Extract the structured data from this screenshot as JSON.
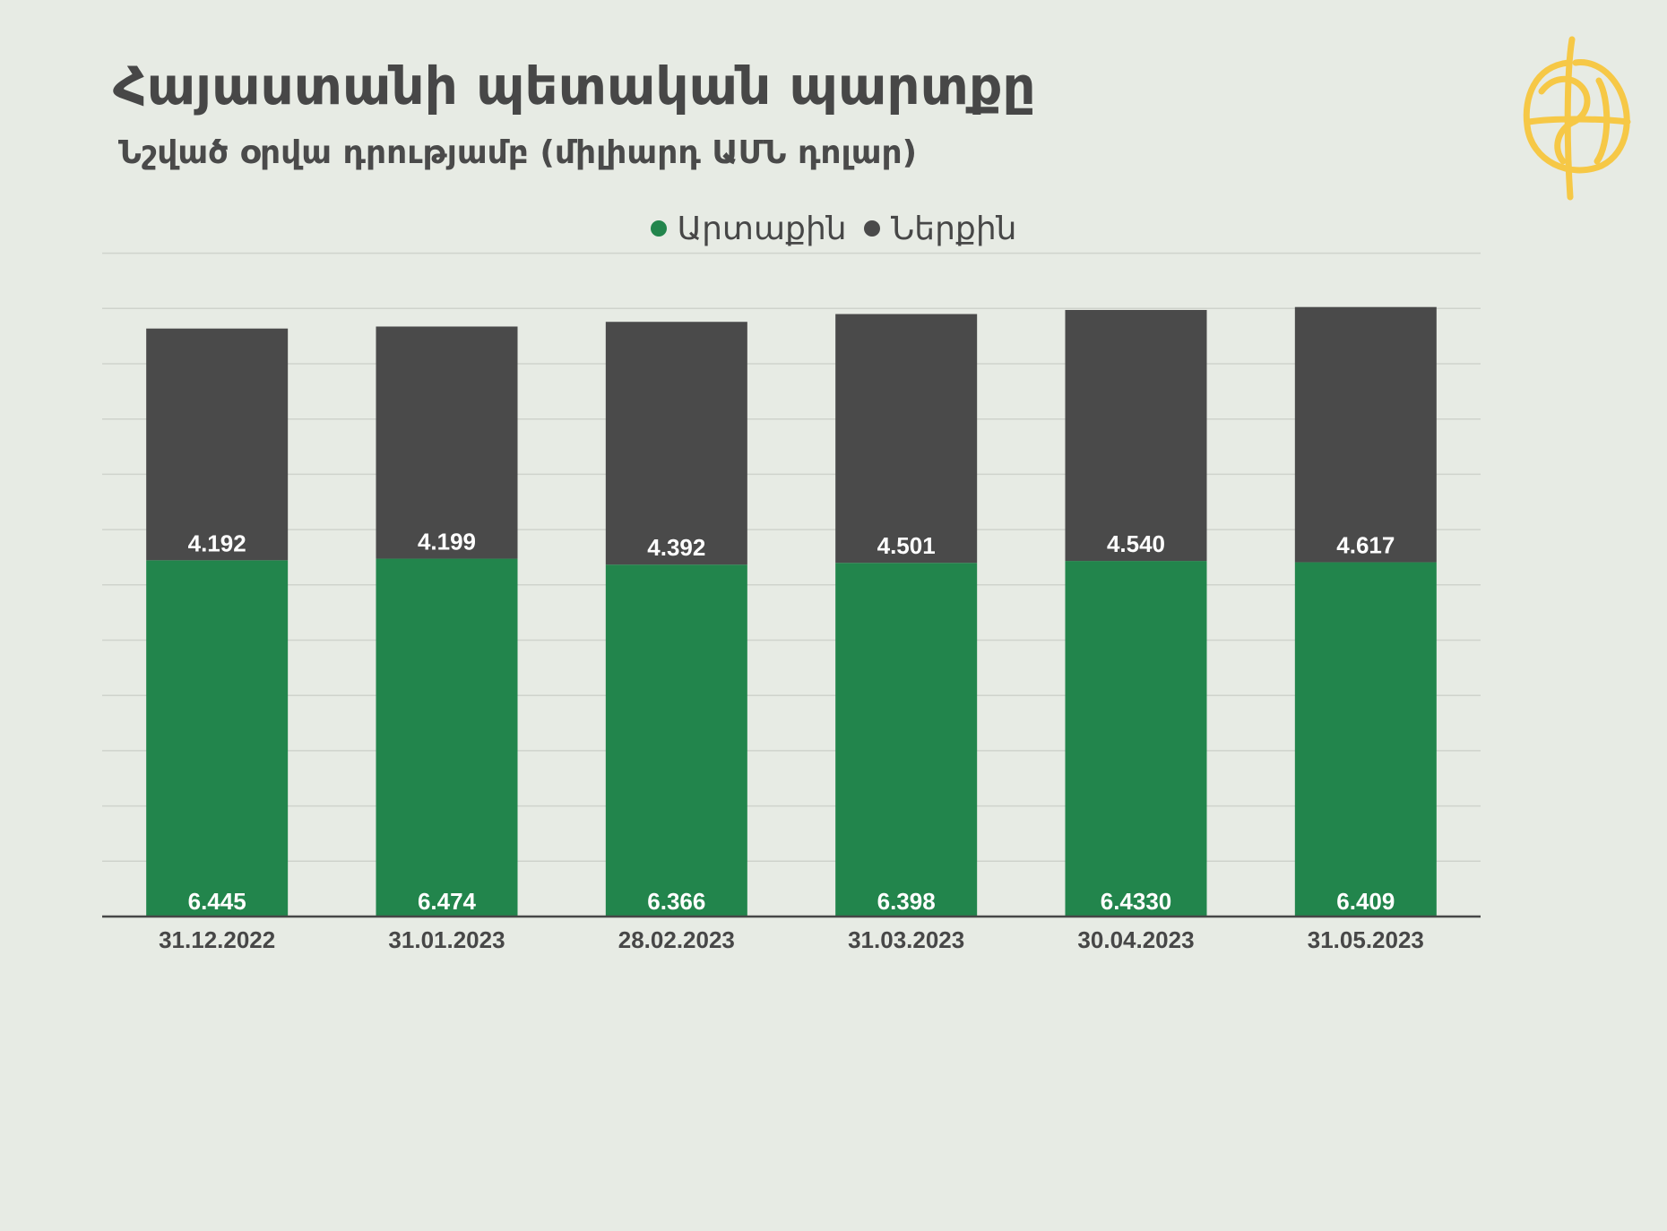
{
  "header": {
    "title": "Հայաստանի պետական պարտքը",
    "subtitle": "Նշված օրվա դրությամբ (միլիարդ ԱՄՆ դոլար)"
  },
  "logo": {
    "icon": "globe-logo-icon",
    "color": "#f6c846"
  },
  "legend": {
    "items": [
      {
        "label": "Արտաքին",
        "color": "#22854c"
      },
      {
        "label": "Ներքին",
        "color": "#4a4a4a"
      }
    ]
  },
  "chart_data": {
    "type": "bar",
    "stacked": true,
    "categories": [
      "31.12.2022",
      "31.01.2023",
      "28.02.2023",
      "31.03.2023",
      "30.04.2023",
      "31.05.2023"
    ],
    "series": [
      {
        "name": "Արտաքին",
        "color": "#22854c",
        "values": [
          6.445,
          6.474,
          6.366,
          6.398,
          6.433,
          6.409
        ],
        "labels": [
          "6.445",
          "6.474",
          "6.366",
          "6.398",
          "6.4330",
          "6.409"
        ]
      },
      {
        "name": "Ներքին",
        "color": "#4a4a4a",
        "values": [
          4.192,
          4.199,
          4.392,
          4.501,
          4.54,
          4.617
        ],
        "labels": [
          "4.192",
          "4.199",
          "4.392",
          "4.501",
          "4.540",
          "4.617"
        ]
      }
    ],
    "ylim": [
      0,
      12
    ],
    "grid": true,
    "legend_position": "top-center"
  }
}
